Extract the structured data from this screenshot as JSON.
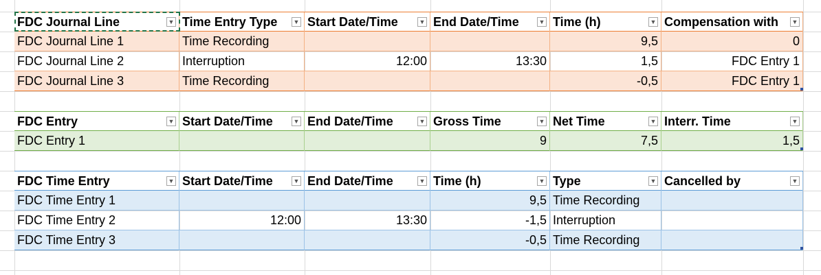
{
  "journal_table": {
    "headers": [
      "FDC Journal Line",
      "Time Entry Type",
      "Start Date/Time",
      "End Date/Time",
      "Time (h)",
      "Compensation with"
    ],
    "rows": [
      [
        "FDC Journal Line 1",
        "Time Recording",
        "",
        "",
        "9,5",
        "0"
      ],
      [
        "FDC Journal Line 2",
        "Interruption",
        "12:00",
        "13:30",
        "1,5",
        "FDC Entry 1"
      ],
      [
        "FDC Journal Line 3",
        "Time Recording",
        "",
        "",
        "-0,5",
        "FDC Entry 1"
      ]
    ],
    "accent_color": "#ed7d31",
    "band_color": "#fce4d6"
  },
  "entry_table": {
    "headers": [
      "FDC Entry",
      "Start Date/Time",
      "End Date/Time",
      "Gross Time",
      "Net Time",
      "Interr. Time"
    ],
    "rows": [
      [
        "FDC Entry 1",
        "",
        "",
        "9",
        "7,5",
        "1,5"
      ]
    ],
    "accent_color": "#70ad47",
    "band_color": "#e2efda"
  },
  "time_entry_table": {
    "headers": [
      "FDC Time Entry",
      "Start Date/Time",
      "End Date/Time",
      "Time (h)",
      "Type",
      "Cancelled by"
    ],
    "rows": [
      [
        "FDC Time Entry 1",
        "",
        "",
        "9,5",
        "Time Recording",
        ""
      ],
      [
        "FDC Time Entry 2",
        "12:00",
        "13:30",
        "-1,5",
        "Interruption",
        ""
      ],
      [
        "FDC Time Entry 3",
        "",
        "",
        "-0,5",
        "Time Recording",
        ""
      ]
    ],
    "accent_color": "#5b9bd5",
    "band_color": "#ddebf7"
  },
  "filter_icon": "dropdown-arrow-icon",
  "selection_color": "#217346"
}
